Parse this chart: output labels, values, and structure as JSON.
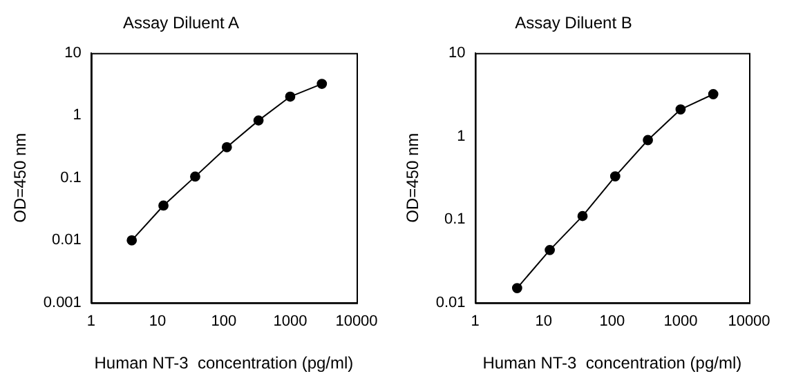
{
  "chart_data": [
    {
      "type": "line",
      "title": "Assay Diluent A",
      "xlabel": "Human NT-3  concentration (pg/ml)",
      "ylabel": "OD=450 nm",
      "log": "xy",
      "grid": false,
      "legend": false,
      "marker": "circle",
      "line_style": "solid",
      "x": [
        4.1,
        12.3,
        37,
        111,
        333,
        1000,
        3000
      ],
      "series": [
        {
          "color": "#000000",
          "values": [
            0.01,
            0.036,
            0.105,
            0.31,
            0.83,
            2.0,
            3.2
          ]
        }
      ],
      "xlim": [
        1,
        10000
      ],
      "xticks": [
        1,
        10,
        100,
        1000,
        10000
      ],
      "ylim": [
        0.001,
        10
      ],
      "yticks": [
        0.001,
        0.01,
        0.1,
        1,
        10
      ]
    },
    {
      "type": "line",
      "title": "Assay Diluent B",
      "xlabel": "Human NT-3  concentration (pg/ml)",
      "ylabel": "OD=450 nm",
      "log": "xy",
      "grid": false,
      "legend": false,
      "marker": "circle",
      "line_style": "solid",
      "x": [
        4.1,
        12.3,
        37,
        111,
        333,
        1000,
        3000
      ],
      "series": [
        {
          "color": "#000000",
          "values": [
            0.015,
            0.043,
            0.11,
            0.33,
            0.9,
            2.1,
            3.2
          ]
        }
      ],
      "xlim": [
        1,
        10000
      ],
      "xticks": [
        1,
        10,
        100,
        1000,
        10000
      ],
      "ylim": [
        0.01,
        10
      ],
      "yticks": [
        0.01,
        0.1,
        1,
        10
      ]
    }
  ]
}
